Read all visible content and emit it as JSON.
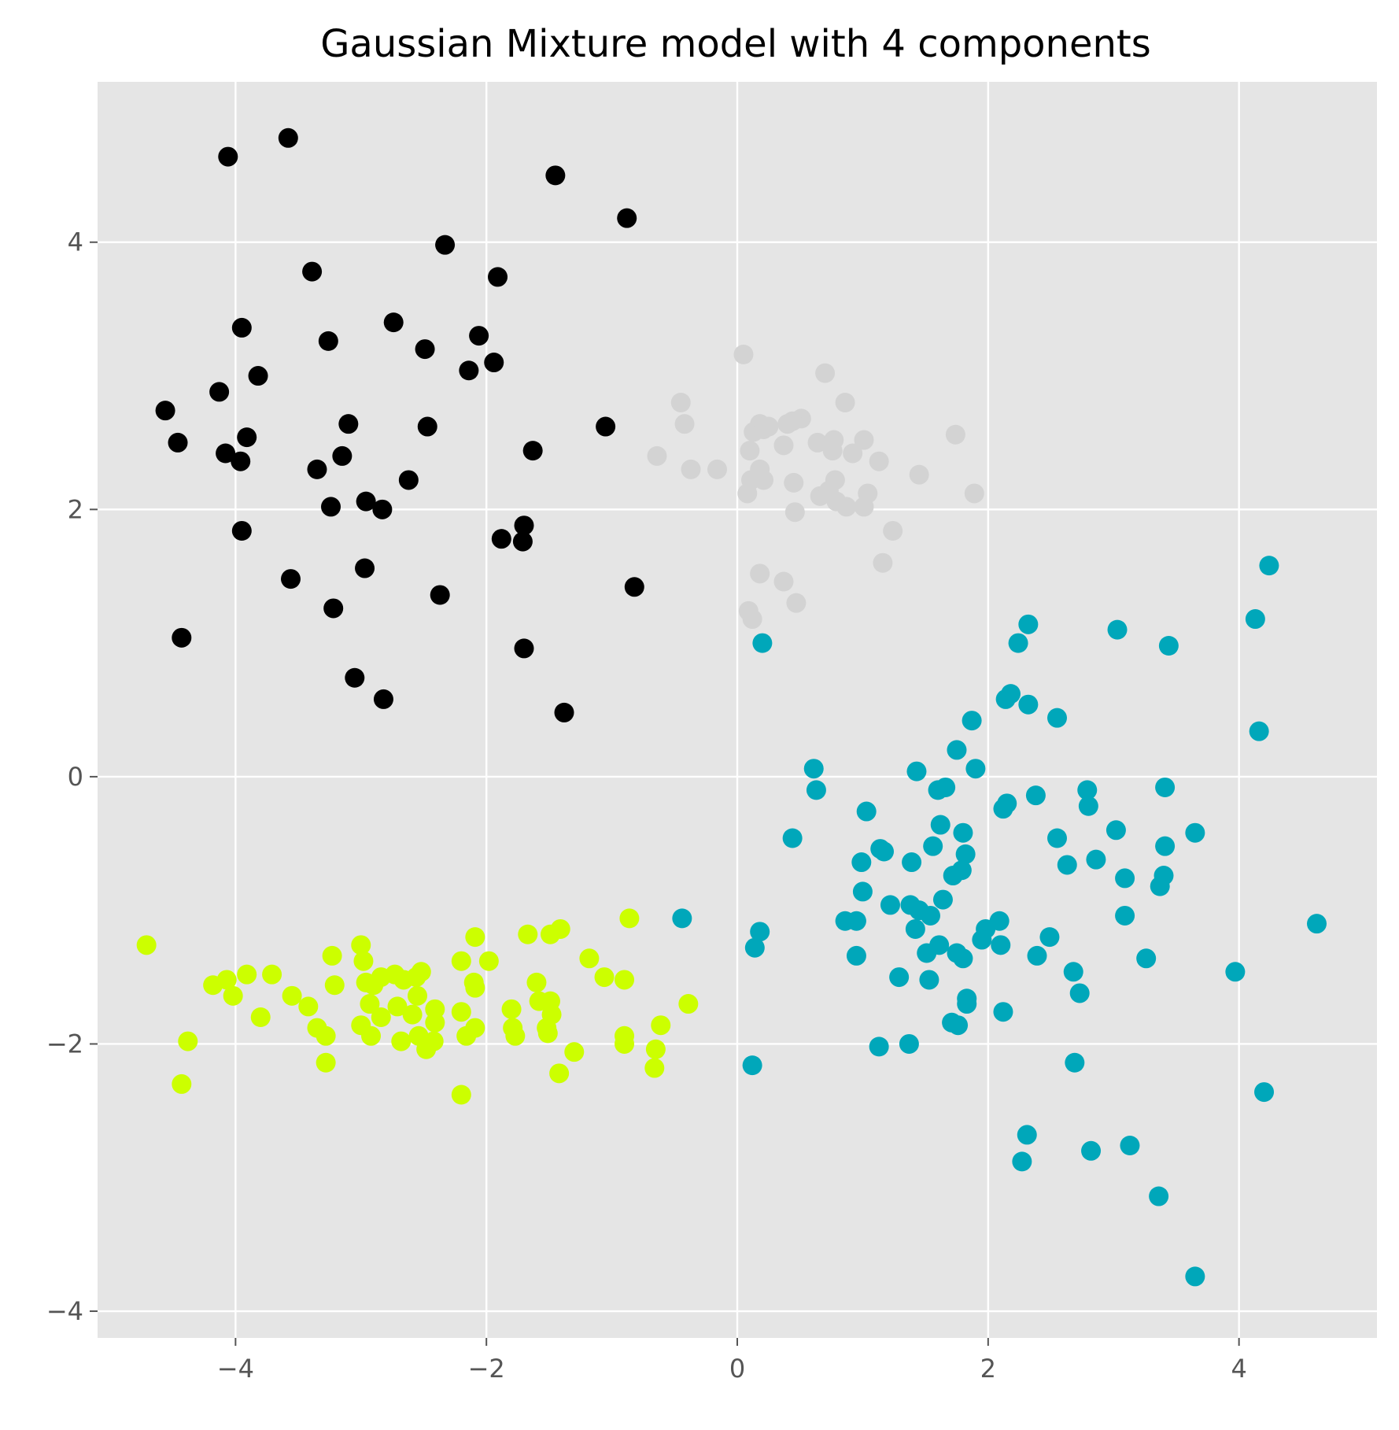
{
  "chart_data": {
    "type": "scatter",
    "title": "Gaussian Mixture model with 4 components",
    "xlabel": "",
    "ylabel": "",
    "xlim": [
      -5.1,
      5.1
    ],
    "ylim": [
      -4.2,
      5.2
    ],
    "xticks": [
      -4,
      -2,
      0,
      2,
      4
    ],
    "yticks": [
      -4,
      -2,
      0,
      2,
      4
    ],
    "xtick_labels": [
      "−4",
      "−2",
      "0",
      "2",
      "4"
    ],
    "ytick_labels": [
      "−4",
      "−2",
      "0",
      "2",
      "4"
    ],
    "grid": true,
    "legend": "none",
    "style": {
      "plot_background": "#E5E5E5",
      "grid_color": "#FFFFFF",
      "tick_color": "#555555"
    },
    "series": [
      {
        "color": "#000000",
        "points": [
          [
            -4.06,
            4.64
          ],
          [
            -3.58,
            4.78
          ],
          [
            -1.45,
            4.5
          ],
          [
            -0.88,
            4.18
          ],
          [
            -2.33,
            3.98
          ],
          [
            -3.39,
            3.78
          ],
          [
            -1.91,
            3.74
          ],
          [
            -3.95,
            3.36
          ],
          [
            -2.74,
            3.4
          ],
          [
            -3.26,
            3.26
          ],
          [
            -2.49,
            3.2
          ],
          [
            -2.06,
            3.3
          ],
          [
            -1.94,
            3.1
          ],
          [
            -2.14,
            3.04
          ],
          [
            -3.82,
            3.0
          ],
          [
            -4.13,
            2.88
          ],
          [
            -4.56,
            2.74
          ],
          [
            -3.1,
            2.64
          ],
          [
            -2.47,
            2.62
          ],
          [
            -1.05,
            2.62
          ],
          [
            -4.46,
            2.5
          ],
          [
            -3.91,
            2.54
          ],
          [
            -4.08,
            2.42
          ],
          [
            -3.96,
            2.36
          ],
          [
            -3.15,
            2.4
          ],
          [
            -3.35,
            2.3
          ],
          [
            -1.63,
            2.44
          ],
          [
            -2.62,
            2.22
          ],
          [
            -2.96,
            2.06
          ],
          [
            -3.24,
            2.02
          ],
          [
            -2.83,
            2.0
          ],
          [
            -3.95,
            1.84
          ],
          [
            -1.7,
            1.88
          ],
          [
            -1.88,
            1.78
          ],
          [
            -1.71,
            1.76
          ],
          [
            -2.97,
            1.56
          ],
          [
            -3.56,
            1.48
          ],
          [
            -2.37,
            1.36
          ],
          [
            -0.82,
            1.42
          ],
          [
            -3.22,
            1.26
          ],
          [
            -4.43,
            1.04
          ],
          [
            -1.7,
            0.96
          ],
          [
            -3.05,
            0.74
          ],
          [
            -2.82,
            0.58
          ],
          [
            -1.38,
            0.48
          ]
        ]
      },
      {
        "color": "#D3D3D3",
        "points": [
          [
            0.05,
            3.16
          ],
          [
            0.7,
            3.02
          ],
          [
            -0.45,
            2.8
          ],
          [
            0.86,
            2.8
          ],
          [
            -0.42,
            2.64
          ],
          [
            0.18,
            2.64
          ],
          [
            0.25,
            2.62
          ],
          [
            0.4,
            2.64
          ],
          [
            0.51,
            2.68
          ],
          [
            0.44,
            2.66
          ],
          [
            0.13,
            2.58
          ],
          [
            0.21,
            2.6
          ],
          [
            1.74,
            2.56
          ],
          [
            -0.64,
            2.4
          ],
          [
            0.1,
            2.44
          ],
          [
            0.37,
            2.48
          ],
          [
            0.64,
            2.5
          ],
          [
            0.77,
            2.52
          ],
          [
            1.01,
            2.52
          ],
          [
            0.76,
            2.44
          ],
          [
            0.92,
            2.42
          ],
          [
            -0.37,
            2.3
          ],
          [
            -0.16,
            2.3
          ],
          [
            0.18,
            2.3
          ],
          [
            1.13,
            2.36
          ],
          [
            1.45,
            2.26
          ],
          [
            0.11,
            2.22
          ],
          [
            0.21,
            2.22
          ],
          [
            0.45,
            2.2
          ],
          [
            0.78,
            2.22
          ],
          [
            0.08,
            2.12
          ],
          [
            0.66,
            2.1
          ],
          [
            0.73,
            2.14
          ],
          [
            1.04,
            2.12
          ],
          [
            1.89,
            2.12
          ],
          [
            0.79,
            2.06
          ],
          [
            0.87,
            2.02
          ],
          [
            1.01,
            2.02
          ],
          [
            0.46,
            1.98
          ],
          [
            1.24,
            1.84
          ],
          [
            0.18,
            1.52
          ],
          [
            0.37,
            1.46
          ],
          [
            1.16,
            1.6
          ],
          [
            0.47,
            1.3
          ],
          [
            0.09,
            1.24
          ],
          [
            0.12,
            1.18
          ]
        ]
      },
      {
        "color": "#00A7BA",
        "points": [
          [
            4.24,
            1.58
          ],
          [
            2.32,
            1.14
          ],
          [
            3.03,
            1.1
          ],
          [
            4.13,
            1.18
          ],
          [
            2.24,
            1.0
          ],
          [
            3.44,
            0.98
          ],
          [
            0.2,
            1.0
          ],
          [
            2.18,
            0.62
          ],
          [
            2.14,
            0.58
          ],
          [
            2.32,
            0.54
          ],
          [
            2.55,
            0.44
          ],
          [
            1.87,
            0.42
          ],
          [
            4.16,
            0.34
          ],
          [
            1.75,
            0.2
          ],
          [
            0.61,
            0.06
          ],
          [
            1.43,
            0.04
          ],
          [
            1.9,
            0.06
          ],
          [
            0.63,
            -0.1
          ],
          [
            1.6,
            -0.1
          ],
          [
            1.66,
            -0.08
          ],
          [
            2.79,
            -0.1
          ],
          [
            3.41,
            -0.08
          ],
          [
            2.38,
            -0.14
          ],
          [
            2.15,
            -0.2
          ],
          [
            2.12,
            -0.24
          ],
          [
            2.8,
            -0.22
          ],
          [
            1.03,
            -0.26
          ],
          [
            1.62,
            -0.36
          ],
          [
            1.8,
            -0.42
          ],
          [
            3.02,
            -0.4
          ],
          [
            3.65,
            -0.42
          ],
          [
            0.44,
            -0.46
          ],
          [
            2.55,
            -0.46
          ],
          [
            1.56,
            -0.52
          ],
          [
            1.14,
            -0.54
          ],
          [
            1.17,
            -0.56
          ],
          [
            3.41,
            -0.52
          ],
          [
            1.82,
            -0.58
          ],
          [
            0.99,
            -0.64
          ],
          [
            1.39,
            -0.64
          ],
          [
            2.63,
            -0.66
          ],
          [
            2.86,
            -0.62
          ],
          [
            1.79,
            -0.7
          ],
          [
            1.72,
            -0.74
          ],
          [
            3.09,
            -0.76
          ],
          [
            3.4,
            -0.74
          ],
          [
            3.37,
            -0.82
          ],
          [
            1.0,
            -0.86
          ],
          [
            1.64,
            -0.92
          ],
          [
            1.22,
            -0.96
          ],
          [
            1.38,
            -0.96
          ],
          [
            1.45,
            -1.0
          ],
          [
            1.54,
            -1.04
          ],
          [
            3.09,
            -1.04
          ],
          [
            -0.44,
            -1.06
          ],
          [
            0.86,
            -1.08
          ],
          [
            0.95,
            -1.08
          ],
          [
            2.09,
            -1.08
          ],
          [
            4.62,
            -1.1
          ],
          [
            1.42,
            -1.14
          ],
          [
            1.98,
            -1.14
          ],
          [
            0.18,
            -1.16
          ],
          [
            1.95,
            -1.22
          ],
          [
            2.49,
            -1.2
          ],
          [
            2.1,
            -1.26
          ],
          [
            1.61,
            -1.26
          ],
          [
            0.14,
            -1.28
          ],
          [
            1.51,
            -1.32
          ],
          [
            1.75,
            -1.32
          ],
          [
            1.8,
            -1.36
          ],
          [
            0.95,
            -1.34
          ],
          [
            2.39,
            -1.34
          ],
          [
            3.26,
            -1.36
          ],
          [
            3.97,
            -1.46
          ],
          [
            2.68,
            -1.46
          ],
          [
            1.29,
            -1.5
          ],
          [
            1.53,
            -1.52
          ],
          [
            2.73,
            -1.62
          ],
          [
            1.83,
            -1.66
          ],
          [
            1.83,
            -1.7
          ],
          [
            2.12,
            -1.76
          ],
          [
            1.71,
            -1.84
          ],
          [
            1.76,
            -1.86
          ],
          [
            1.13,
            -2.02
          ],
          [
            1.37,
            -2.0
          ],
          [
            0.12,
            -2.16
          ],
          [
            2.69,
            -2.14
          ],
          [
            4.2,
            -2.36
          ],
          [
            2.31,
            -2.68
          ],
          [
            3.13,
            -2.76
          ],
          [
            2.82,
            -2.8
          ],
          [
            2.27,
            -2.88
          ],
          [
            3.36,
            -3.14
          ],
          [
            3.65,
            -3.74
          ]
        ]
      },
      {
        "color": "#CCFF00",
        "points": [
          [
            -4.71,
            -1.26
          ],
          [
            -0.86,
            -1.06
          ],
          [
            -2.09,
            -1.2
          ],
          [
            -1.67,
            -1.18
          ],
          [
            -1.49,
            -1.18
          ],
          [
            -1.41,
            -1.14
          ],
          [
            -3.0,
            -1.26
          ],
          [
            -3.23,
            -1.34
          ],
          [
            -2.98,
            -1.38
          ],
          [
            -1.98,
            -1.38
          ],
          [
            -2.2,
            -1.38
          ],
          [
            -1.18,
            -1.36
          ],
          [
            -2.52,
            -1.46
          ],
          [
            -2.73,
            -1.48
          ],
          [
            -2.56,
            -1.5
          ],
          [
            -3.71,
            -1.48
          ],
          [
            -3.91,
            -1.48
          ],
          [
            -4.07,
            -1.52
          ],
          [
            -4.18,
            -1.56
          ],
          [
            -2.84,
            -1.5
          ],
          [
            -2.66,
            -1.52
          ],
          [
            -2.9,
            -1.56
          ],
          [
            -2.96,
            -1.54
          ],
          [
            -3.21,
            -1.56
          ],
          [
            -2.1,
            -1.54
          ],
          [
            -2.09,
            -1.58
          ],
          [
            -1.6,
            -1.54
          ],
          [
            -1.06,
            -1.5
          ],
          [
            -0.9,
            -1.52
          ],
          [
            -4.02,
            -1.64
          ],
          [
            -3.55,
            -1.64
          ],
          [
            -2.55,
            -1.64
          ],
          [
            -1.58,
            -1.68
          ],
          [
            -1.49,
            -1.68
          ],
          [
            -3.42,
            -1.72
          ],
          [
            -2.93,
            -1.7
          ],
          [
            -2.71,
            -1.72
          ],
          [
            -2.41,
            -1.74
          ],
          [
            -1.8,
            -1.74
          ],
          [
            -1.48,
            -1.78
          ],
          [
            -0.39,
            -1.7
          ],
          [
            -3.8,
            -1.8
          ],
          [
            -2.84,
            -1.8
          ],
          [
            -2.59,
            -1.78
          ],
          [
            -2.2,
            -1.76
          ],
          [
            -2.41,
            -1.84
          ],
          [
            -2.09,
            -1.88
          ],
          [
            -3.35,
            -1.88
          ],
          [
            -3.0,
            -1.86
          ],
          [
            -1.79,
            -1.88
          ],
          [
            -1.52,
            -1.88
          ],
          [
            -0.61,
            -1.86
          ],
          [
            -3.28,
            -1.94
          ],
          [
            -2.92,
            -1.94
          ],
          [
            -2.54,
            -1.94
          ],
          [
            -2.16,
            -1.94
          ],
          [
            -1.77,
            -1.94
          ],
          [
            -1.51,
            -1.92
          ],
          [
            -0.9,
            -1.94
          ],
          [
            -4.38,
            -1.98
          ],
          [
            -2.68,
            -1.98
          ],
          [
            -2.42,
            -1.98
          ],
          [
            -0.9,
            -2.0
          ],
          [
            -2.48,
            -2.04
          ],
          [
            -1.3,
            -2.06
          ],
          [
            -0.65,
            -2.04
          ],
          [
            -3.28,
            -2.14
          ],
          [
            -0.66,
            -2.18
          ],
          [
            -1.42,
            -2.22
          ],
          [
            -4.43,
            -2.3
          ],
          [
            -2.2,
            -2.38
          ]
        ]
      }
    ]
  }
}
